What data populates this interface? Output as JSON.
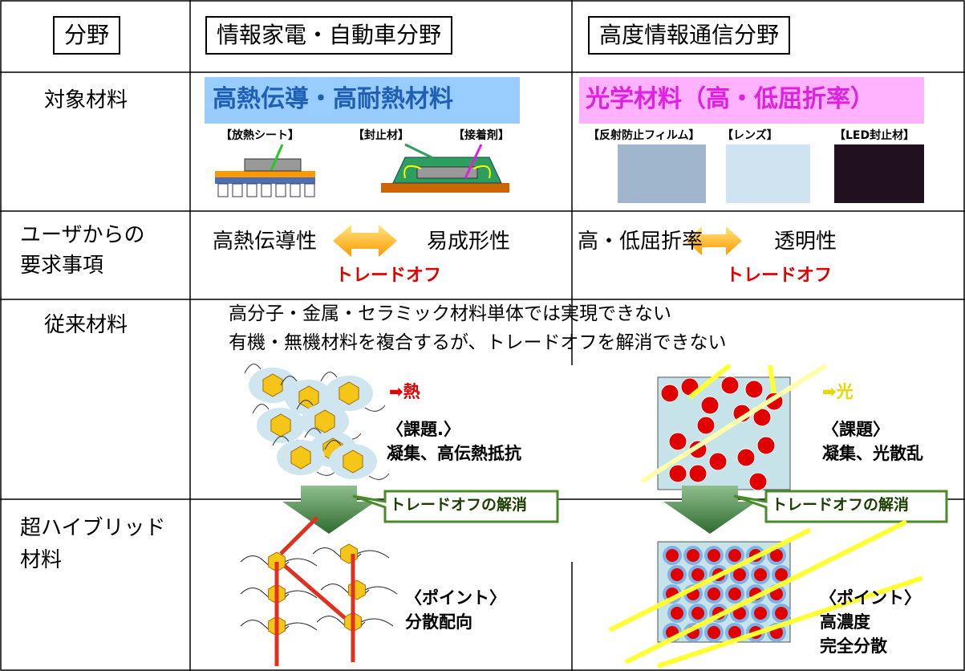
{
  "header": {
    "field": "分野",
    "col1": "情報家電・自動車分野",
    "col2": "高度情報通信分野"
  },
  "rows": [
    {
      "label": [
        "対象材料"
      ],
      "col1": {
        "title": "高熱伝導・高耐熱材料",
        "items": [
          "【放熱シート】",
          "【封止材】",
          "【接着剤】"
        ]
      },
      "col2": {
        "title": "光学材料（高・低屈折率）",
        "items": [
          "【反射防止フィルム】",
          "【レンズ】",
          "【LED封止材】"
        ]
      }
    },
    {
      "label": [
        "ユーザからの",
        "要求事項"
      ],
      "col1": {
        "left": "高熱伝導性",
        "right": "易成形性",
        "note": "トレードオフ"
      },
      "col2": {
        "left": "高・低屈折率",
        "right": "透明性",
        "note": "トレードオフ"
      }
    },
    {
      "label": [
        "従来材料"
      ],
      "statements": [
        "高分子・金属・セラミック材料単体では実現できない",
        "有機・無機材料を複合するが、トレードオフを解消できない"
      ],
      "col1": {
        "arrow": "➡熱",
        "heading": "〈課題.〉",
        "text": "凝集、高伝熱抵抗"
      },
      "col2": {
        "arrow": "➡光",
        "heading": "〈課題〉",
        "text": "凝集、光散乱"
      }
    },
    {
      "label": [
        "超ハイブリッド",
        "材料"
      ],
      "col1": {
        "heading": "〈ポイント〉",
        "lines": [
          "分散配向"
        ]
      },
      "col2": {
        "heading": "〈ポイント〉",
        "lines": [
          "高濃度",
          "完全分散"
        ]
      }
    }
  ],
  "callouts": [
    "トレードオフの解消",
    "トレードオフの解消"
  ]
}
